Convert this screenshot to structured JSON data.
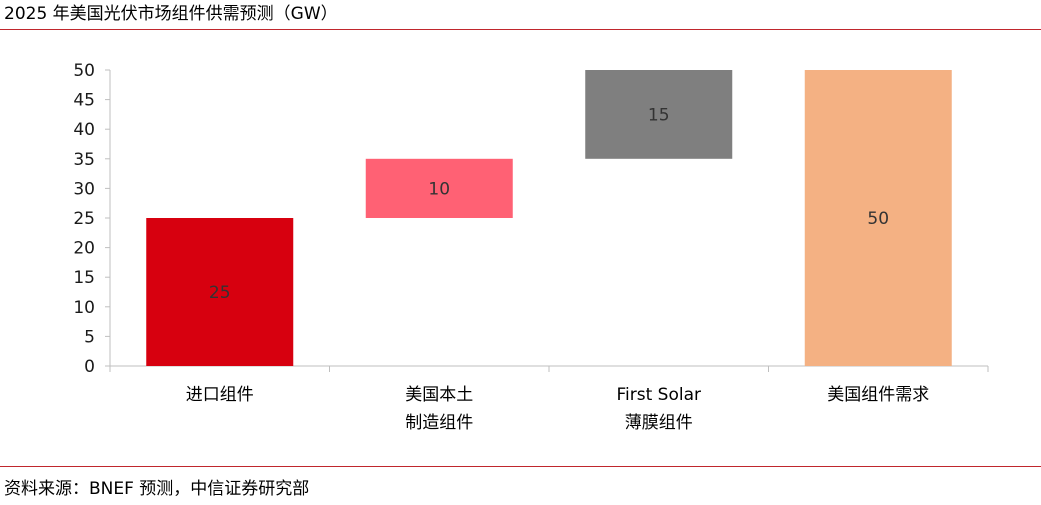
{
  "title": "2025 年美国光伏市场组件供需预测（GW）",
  "source": "资料来源：BNEF 预测，中信证券研究部",
  "colors": {
    "rule": "#c0272d",
    "axis": "#bfbfbf"
  },
  "chart_data": {
    "type": "bar",
    "subtype": "waterfall",
    "title": "2025 年美国光伏市场组件供需预测（GW）",
    "xlabel": "",
    "ylabel": "",
    "ylim": [
      0,
      50
    ],
    "yticks": [
      0,
      5,
      10,
      15,
      20,
      25,
      30,
      35,
      40,
      45,
      50
    ],
    "grid": false,
    "categories": [
      [
        "进口组件"
      ],
      [
        "美国本土",
        "制造组件"
      ],
      [
        "First Solar",
        "薄膜组件"
      ],
      [
        "美国组件需求"
      ]
    ],
    "bars": [
      {
        "base": 0,
        "value": 25,
        "label": "25",
        "color": "#d7000f"
      },
      {
        "base": 25,
        "value": 10,
        "label": "10",
        "color": "#ff6174"
      },
      {
        "base": 35,
        "value": 15,
        "label": "15",
        "color": "#7f7f7f"
      },
      {
        "base": 0,
        "value": 50,
        "label": "50",
        "color": "#f4b183"
      }
    ]
  }
}
